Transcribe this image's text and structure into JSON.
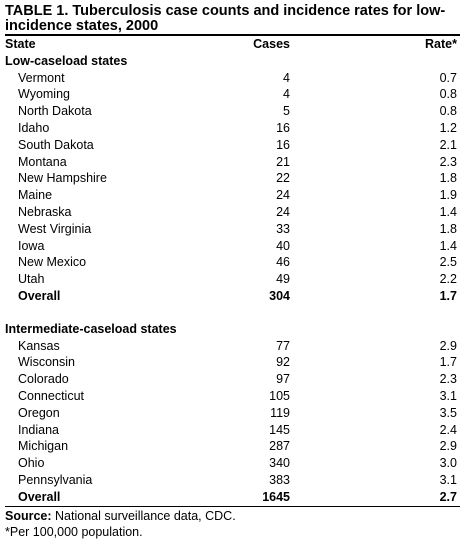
{
  "title": "TABLE 1. Tuberculosis case counts and incidence rates for low-incidence states, 2000",
  "columns": {
    "state": "State",
    "cases": "Cases",
    "rate": "Rate*"
  },
  "groups": [
    {
      "label": "Low-caseload states",
      "rows": [
        {
          "state": "Vermont",
          "cases": "4",
          "rate": "0.7"
        },
        {
          "state": "Wyoming",
          "cases": "4",
          "rate": "0.8"
        },
        {
          "state": "North Dakota",
          "cases": "5",
          "rate": "0.8"
        },
        {
          "state": "Idaho",
          "cases": "16",
          "rate": "1.2"
        },
        {
          "state": "South Dakota",
          "cases": "16",
          "rate": "2.1"
        },
        {
          "state": "Montana",
          "cases": "21",
          "rate": "2.3"
        },
        {
          "state": "New Hampshire",
          "cases": "22",
          "rate": "1.8"
        },
        {
          "state": "Maine",
          "cases": "24",
          "rate": "1.9"
        },
        {
          "state": "Nebraska",
          "cases": "24",
          "rate": "1.4"
        },
        {
          "state": "West Virginia",
          "cases": "33",
          "rate": "1.8"
        },
        {
          "state": "Iowa",
          "cases": "40",
          "rate": "1.4"
        },
        {
          "state": "New Mexico",
          "cases": "46",
          "rate": "2.5"
        },
        {
          "state": "Utah",
          "cases": "49",
          "rate": "2.2"
        }
      ],
      "overall": {
        "state": "Overall",
        "cases": "304",
        "rate": "1.7"
      }
    },
    {
      "label": "Intermediate-caseload states",
      "rows": [
        {
          "state": "Kansas",
          "cases": "77",
          "rate": "2.9"
        },
        {
          "state": "Wisconsin",
          "cases": "92",
          "rate": "1.7"
        },
        {
          "state": "Colorado",
          "cases": "97",
          "rate": "2.3"
        },
        {
          "state": "Connecticut",
          "cases": "105",
          "rate": "3.1"
        },
        {
          "state": "Oregon",
          "cases": "119",
          "rate": "3.5"
        },
        {
          "state": "Indiana",
          "cases": "145",
          "rate": "2.4"
        },
        {
          "state": "Michigan",
          "cases": "287",
          "rate": "2.9"
        },
        {
          "state": "Ohio",
          "cases": "340",
          "rate": "3.0"
        },
        {
          "state": "Pennsylvania",
          "cases": "383",
          "rate": "3.1"
        }
      ],
      "overall": {
        "state": "Overall",
        "cases": "1645",
        "rate": "2.7"
      }
    }
  ],
  "footnotes": {
    "source_label": "Source:",
    "source_text": "National surveillance data, CDC.",
    "note": "*Per 100,000 population."
  }
}
